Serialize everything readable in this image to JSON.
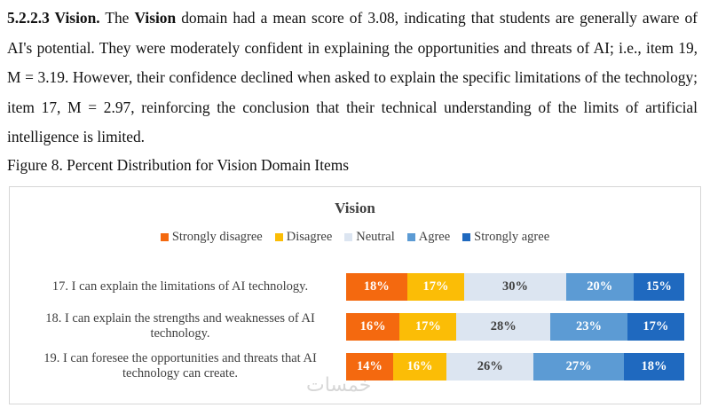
{
  "paragraph": {
    "heading": "5.2.2.3 Vision.",
    "lead": "The",
    "term": "Vision",
    "body": "domain had a mean score of 3.08, indicating that students are generally aware of AI's potential. They were moderately confident in explaining the opportunities and threats of AI; i.e., item 19, M = 3.19. However, their confidence declined when asked to explain the specific limitations of the technology; item 17, M = 2.97, reinforcing the conclusion that their technical understanding of the limits of artificial intelligence is limited."
  },
  "caption": "Figure 8. Percent Distribution for Vision Domain Items",
  "chart_data": {
    "type": "stacked-bar-horizontal",
    "title": "Vision",
    "categories": [
      "17. I can explain the limitations of AI technology.",
      "18. I can explain the strengths and weaknesses of AI technology.",
      "19. I can foresee the opportunities and threats that AI technology can create."
    ],
    "series": [
      {
        "name": "Strongly disagree",
        "color": "#f4690f",
        "values": [
          18,
          16,
          14
        ],
        "value_labels": [
          "18%",
          "16%",
          "14%"
        ]
      },
      {
        "name": "Disagree",
        "color": "#fbbd06",
        "values": [
          17,
          17,
          16
        ],
        "value_labels": [
          "17%",
          "17%",
          "16%"
        ]
      },
      {
        "name": "Neutral",
        "color": "#dce5f1",
        "values": [
          30,
          28,
          26
        ],
        "value_labels": [
          "30%",
          "28%",
          "26%"
        ]
      },
      {
        "name": "Agree",
        "color": "#5c9bd4",
        "values": [
          20,
          23,
          27
        ],
        "value_labels": [
          "20%",
          "23%",
          "27%"
        ]
      },
      {
        "name": "Strongly agree",
        "color": "#1f69bf",
        "values": [
          15,
          17,
          18
        ],
        "value_labels": [
          "15%",
          "17%",
          "18%"
        ]
      }
    ]
  },
  "watermark": "خمسات"
}
